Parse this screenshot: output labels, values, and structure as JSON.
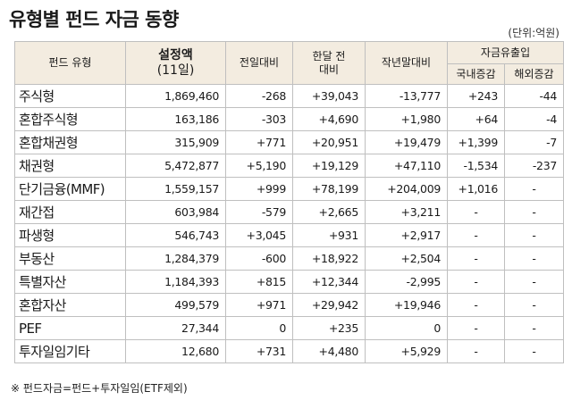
{
  "title": "유형별 펀드 자금 동향",
  "unit": "(단위:억원)",
  "headers": {
    "fund_type": "펀드 유형",
    "balance": "설정액",
    "balance_date": "(11일)",
    "prev_day": "전일대비",
    "prev_month_l1": "한달 전",
    "prev_month_l2": "대비",
    "year_end": "작년말대비",
    "flow": "자금유출입",
    "domestic": "국내증감",
    "overseas": "해외증감"
  },
  "rows": [
    {
      "type": "주식형",
      "balance": "1,869,460",
      "prev_day": "-268",
      "prev_month": "+39,043",
      "year_end": "-13,777",
      "domestic": "+243",
      "overseas": "-44"
    },
    {
      "type": "혼합주식형",
      "balance": "163,186",
      "prev_day": "-303",
      "prev_month": "+4,690",
      "year_end": "+1,980",
      "domestic": "+64",
      "overseas": "-4"
    },
    {
      "type": "혼합채권형",
      "balance": "315,909",
      "prev_day": "+771",
      "prev_month": "+20,951",
      "year_end": "+19,479",
      "domestic": "+1,399",
      "overseas": "-7"
    },
    {
      "type": "채권형",
      "balance": "5,472,877",
      "prev_day": "+5,190",
      "prev_month": "+19,129",
      "year_end": "+47,110",
      "domestic": "-1,534",
      "overseas": "-237"
    },
    {
      "type": "단기금융(MMF)",
      "balance": "1,559,157",
      "prev_day": "+999",
      "prev_month": "+78,199",
      "year_end": "+204,009",
      "domestic": "+1,016",
      "overseas": "-"
    },
    {
      "type": "재간접",
      "balance": "603,984",
      "prev_day": "-579",
      "prev_month": "+2,665",
      "year_end": "+3,211",
      "domestic": "-",
      "overseas": "-"
    },
    {
      "type": "파생형",
      "balance": "546,743",
      "prev_day": "+3,045",
      "prev_month": "+931",
      "year_end": "+2,917",
      "domestic": "-",
      "overseas": "-"
    },
    {
      "type": "부동산",
      "balance": "1,284,379",
      "prev_day": "-600",
      "prev_month": "+18,922",
      "year_end": "+2,504",
      "domestic": "-",
      "overseas": "-"
    },
    {
      "type": "특별자산",
      "balance": "1,184,393",
      "prev_day": "+815",
      "prev_month": "+12,344",
      "year_end": "-2,995",
      "domestic": "-",
      "overseas": "-"
    },
    {
      "type": "혼합자산",
      "balance": "499,579",
      "prev_day": "+971",
      "prev_month": "+29,942",
      "year_end": "+19,946",
      "domestic": "-",
      "overseas": "-"
    },
    {
      "type": "PEF",
      "balance": "27,344",
      "prev_day": "0",
      "prev_month": "+235",
      "year_end": "0",
      "domestic": "-",
      "overseas": "-"
    },
    {
      "type": "투자일임기타",
      "balance": "12,680",
      "prev_day": "+731",
      "prev_month": "+4,480",
      "year_end": "+5,929",
      "domestic": "-",
      "overseas": "-"
    }
  ],
  "footnote": "※ 펀드자금=펀드+투자일임(ETF제외)"
}
